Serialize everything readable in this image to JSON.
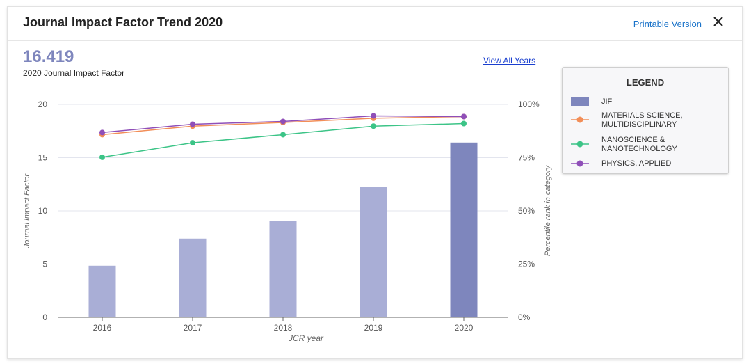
{
  "header": {
    "title": "Journal Impact Factor Trend 2020",
    "printable_label": "Printable Version"
  },
  "summary": {
    "value": "16.419",
    "label": "2020 Journal Impact Factor",
    "view_all_label": "View All Years"
  },
  "legend": {
    "title": "LEGEND",
    "items": [
      {
        "label": "JIF",
        "color": "#7e86bd",
        "kind": "bar"
      },
      {
        "label": "MATERIALS SCIENCE, MULTIDISCIPLINARY",
        "color": "#f28e58",
        "kind": "line"
      },
      {
        "label": "NANOSCIENCE & NANOTECHNOLOGY",
        "color": "#3cc487",
        "kind": "line"
      },
      {
        "label": "PHYSICS, APPLIED",
        "color": "#8f4fb8",
        "kind": "line"
      }
    ]
  },
  "chart_data": {
    "type": "bar",
    "categories": [
      "2016",
      "2017",
      "2018",
      "2019",
      "2020"
    ],
    "xlabel": "JCR year",
    "ylabel": "Journal Impact Factor",
    "ylabel_right": "Percentile rank in category",
    "ylim": [
      0,
      20
    ],
    "yticks": [
      "0",
      "5",
      "10",
      "15",
      "20"
    ],
    "ylim_right": [
      0,
      100
    ],
    "yticks_right": [
      "0%",
      "25%",
      "50%",
      "75%",
      "100%"
    ],
    "bars": {
      "name": "JIF",
      "values": [
        4.85,
        7.4,
        9.05,
        12.25,
        16.419
      ],
      "color": "#a9aed6",
      "highlight_color": "#7e86bd",
      "highlight_index": 4
    },
    "series": [
      {
        "name": "MATERIALS SCIENCE, MULTIDISCIPLINARY",
        "color": "#f28e58",
        "values": [
          85.8,
          89.8,
          91.5,
          93.5,
          94.3
        ]
      },
      {
        "name": "NANOSCIENCE & NANOTECHNOLOGY",
        "color": "#3cc487",
        "values": [
          75.2,
          82.0,
          85.8,
          89.8,
          91.0
        ]
      },
      {
        "name": "PHYSICS, APPLIED",
        "color": "#8f4fb8",
        "values": [
          86.8,
          90.7,
          92.0,
          94.6,
          94.3
        ]
      }
    ],
    "grid": true,
    "legend_position": "right"
  }
}
